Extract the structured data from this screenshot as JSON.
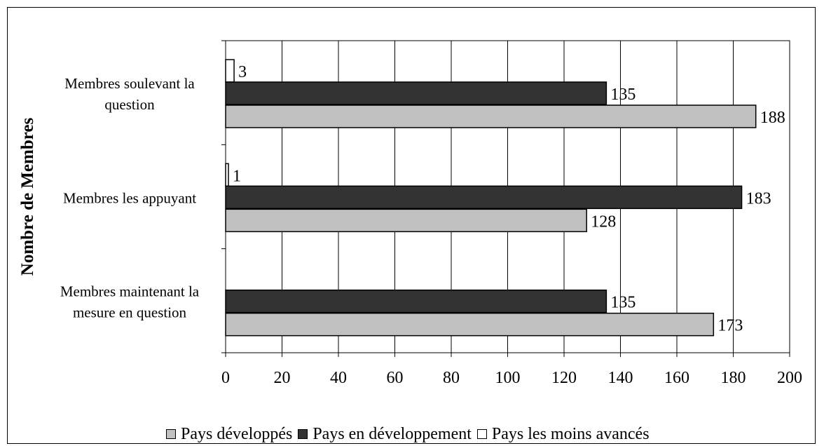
{
  "chart_data": {
    "type": "bar",
    "orientation": "horizontal",
    "title": "",
    "ylabel": "Nombre de Membres",
    "xlabel": "",
    "xlim": [
      0,
      200
    ],
    "x_ticks": [
      "0",
      "20",
      "40",
      "60",
      "80",
      "100",
      "120",
      "140",
      "160",
      "180",
      "200"
    ],
    "grid": "vertical",
    "legend_position": "bottom",
    "categories": [
      [
        "Membres soulevant la",
        "question"
      ],
      [
        "Membres les appuyant"
      ],
      [
        "Membres maintenant la",
        "mesure en question"
      ]
    ],
    "series": [
      {
        "name": "Pays développés",
        "color": "#c0c0c0",
        "values": [
          188,
          128,
          173
        ],
        "labels": [
          "188",
          "128",
          "173"
        ]
      },
      {
        "name": "Pays en développement",
        "color": "#333333",
        "values": [
          135,
          183,
          135
        ],
        "labels": [
          "135",
          "183",
          "135"
        ]
      },
      {
        "name": "Pays les moins avancés",
        "color": "#ffffff",
        "values": [
          3,
          1,
          null
        ],
        "labels": [
          "3",
          "1",
          ""
        ]
      }
    ]
  }
}
